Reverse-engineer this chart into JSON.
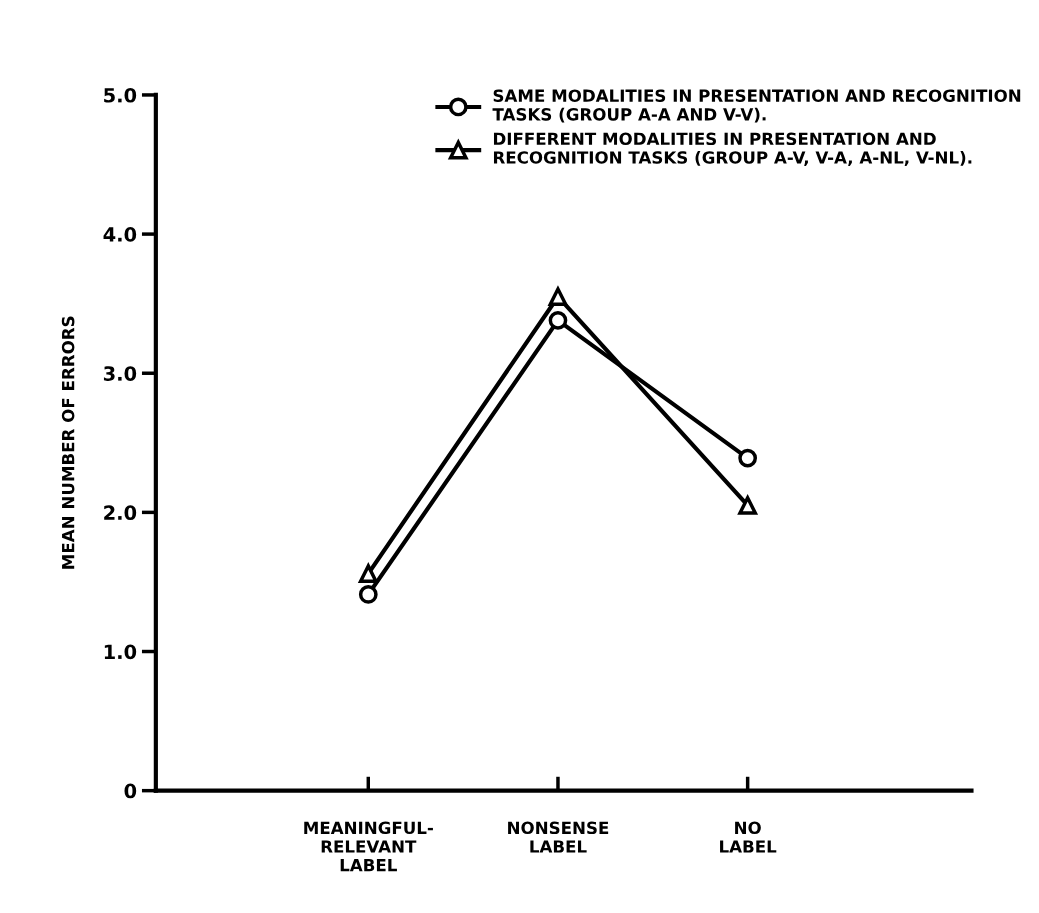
{
  "chart_data": {
    "type": "line",
    "ylabel": "MEAN NUMBER OF ERRORS",
    "categories": [
      "MEANINGFUL-\nRELEVANT\nLABEL",
      "NONSENSE\nLABEL",
      "NO\nLABEL"
    ],
    "series": [
      {
        "name": "SAME MODALITIES IN PRESENTATION AND RECOGNITION\nTASKS (GROUP A-A AND V-V).",
        "color": "#000000",
        "marker": "circle",
        "values": [
          1.41,
          3.38,
          2.39
        ]
      },
      {
        "name": "DIFFERENT MODALITIES IN PRESENTATION AND\nRECOGNITION TASKS (GROUP A-V, V-A, A-NL, V-NL).",
        "color": "#000000",
        "marker": "triangle",
        "values": [
          1.56,
          3.55,
          2.05
        ]
      }
    ],
    "ylim": [
      0,
      5.0
    ],
    "yticks": [
      0,
      {
        "value": 1,
        "label": "1.0"
      },
      {
        "value": 2,
        "label": "2.0"
      },
      {
        "value": 3,
        "label": "3.0"
      },
      {
        "value": 4,
        "label": "4.0"
      },
      {
        "value": 5,
        "label": "5.0"
      }
    ],
    "grid": false,
    "legend": "top right",
    "line_style": "solid"
  }
}
